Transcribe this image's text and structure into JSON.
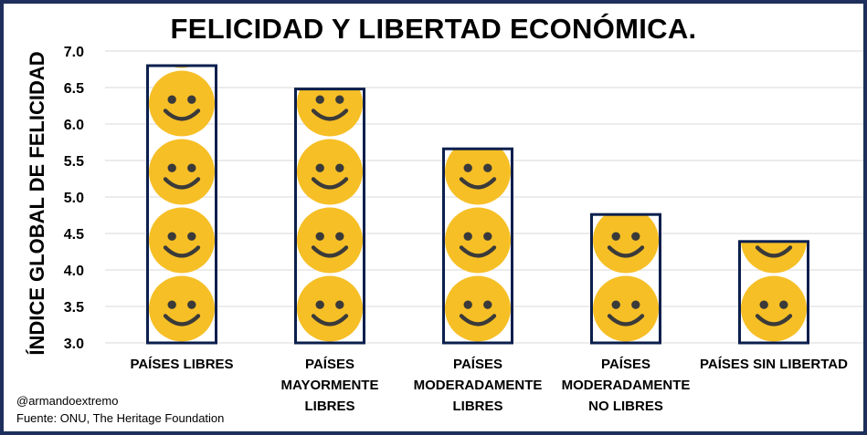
{
  "title": "FELICIDAD Y LIBERTAD ECONÓMICA.",
  "footer": {
    "handle": "@armandoextremo",
    "source": "Fuente: ONU, The Heritage Foundation"
  },
  "colors": {
    "frame": "#1f2f5c",
    "bar_outline": "#0b1f4d",
    "smiley_fill": "#f6bf26",
    "smiley_features": "#3a3a3a",
    "grid": "#d9d9d9"
  },
  "chart_data": {
    "type": "bar",
    "title": "FELICIDAD Y LIBERTAD ECONÓMICA.",
    "xlabel": "",
    "ylabel": "ÍNDICE GLOBAL DE FELICIDAD",
    "ylim": [
      3.0,
      7.0
    ],
    "yticks": [
      "3.0",
      "3.5",
      "4.0",
      "4.5",
      "5.0",
      "5.5",
      "6.0",
      "6.5",
      "7.0"
    ],
    "grid": true,
    "marker": "smiley-icon",
    "categories": [
      [
        "PAÍSES LIBRES"
      ],
      [
        "PAÍSES",
        "MAYORMENTE",
        "LIBRES"
      ],
      [
        "PAÍSES",
        "MODERADAMENTE",
        "LIBRES"
      ],
      [
        "PAÍSES",
        "MODERADAMENTE",
        "NO LIBRES"
      ],
      [
        "PAÍSES SIN LIBERTAD"
      ]
    ],
    "values": [
      6.8,
      6.48,
      5.66,
      4.76,
      4.39
    ]
  }
}
